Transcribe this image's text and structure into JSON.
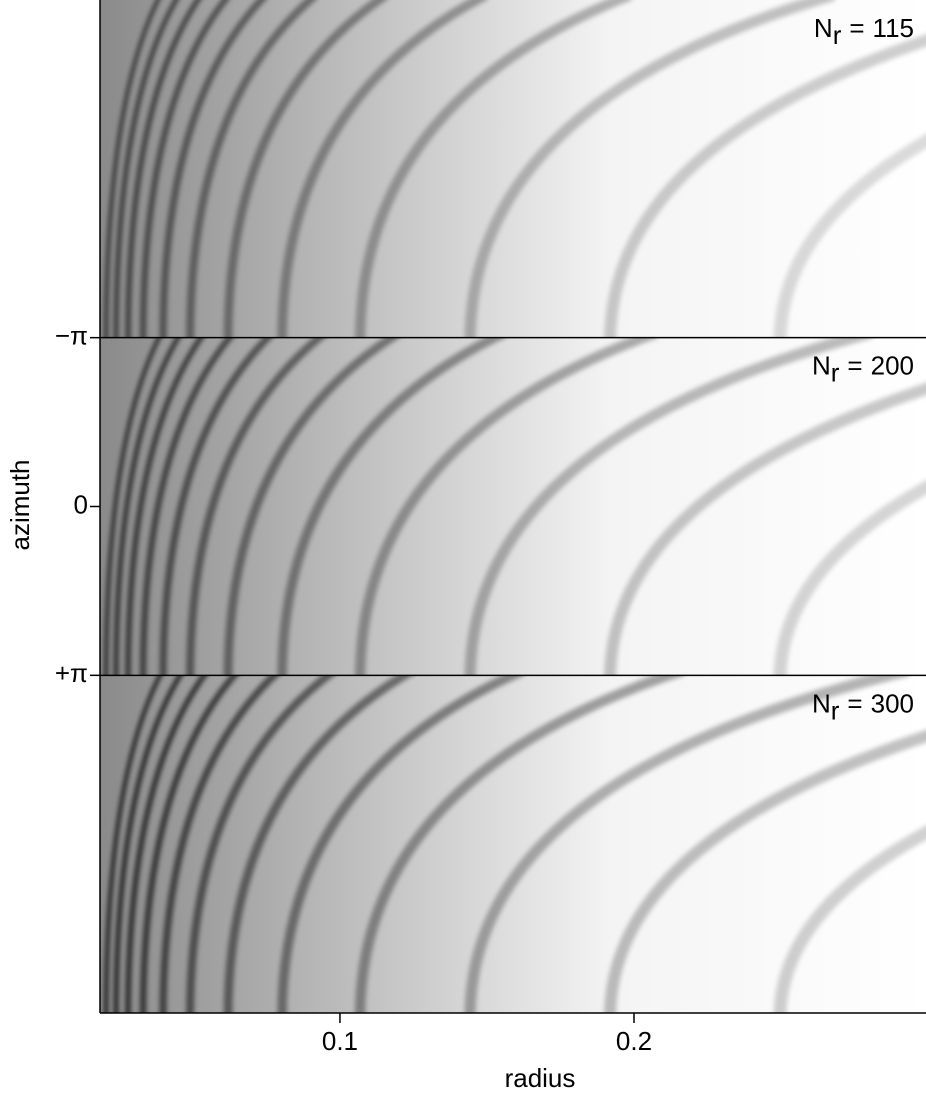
{
  "chart_data": {
    "type": "image",
    "x_label": "radius",
    "y_label": "azimuth",
    "xlim": [
      0.0184,
      0.2993
    ],
    "xticks": [
      0.1,
      0.2
    ],
    "ylim": [
      -9.4248,
      9.4248
    ],
    "y_inverted": true,
    "yticks": [
      {
        "value": -3.1416,
        "label": "−π"
      },
      0,
      {
        "value": 3.1416,
        "label": "+π"
      }
    ],
    "panels": [
      {
        "symbol": "N",
        "subscript": "r",
        "equals": "=",
        "value": 115
      },
      {
        "symbol": "N",
        "subscript": "r",
        "equals": "=",
        "value": 200
      },
      {
        "symbol": "N",
        "subscript": "r",
        "equals": "=",
        "value": 300
      }
    ]
  }
}
